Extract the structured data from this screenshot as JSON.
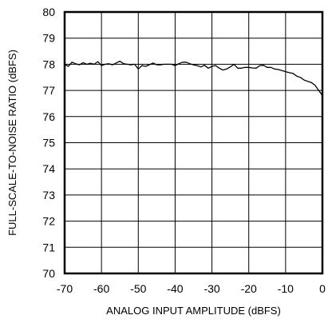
{
  "chart_data": {
    "type": "line",
    "title": "",
    "xlabel": "ANALOG INPUT AMPLITUDE (dBFS)",
    "ylabel": "FULL-SCALE-TO-NOISE RATIO (dBFS)",
    "xlim": [
      -70,
      0
    ],
    "ylim": [
      70,
      80
    ],
    "xticks": [
      -70,
      -60,
      -50,
      -40,
      -30,
      -20,
      -10,
      0
    ],
    "yticks": [
      70,
      71,
      72,
      73,
      74,
      75,
      76,
      77,
      78,
      79,
      80
    ],
    "xtick_labels": [
      "-70",
      "-60",
      "-50",
      "-40",
      "-30",
      "-20",
      "-10",
      "0"
    ],
    "ytick_labels": [
      "70",
      "71",
      "72",
      "73",
      "74",
      "75",
      "76",
      "77",
      "78",
      "79",
      "80"
    ],
    "grid": true,
    "series": [
      {
        "x": [
          -70,
          -69,
          -68,
          -67,
          -66,
          -65,
          -64,
          -63,
          -62,
          -61,
          -60,
          -59,
          -58,
          -57,
          -56,
          -55,
          -54,
          -53,
          -52,
          -51,
          -50,
          -49,
          -48,
          -47,
          -46,
          -45,
          -44,
          -43,
          -42,
          -41,
          -40,
          -39,
          -38,
          -37,
          -36,
          -35,
          -34,
          -33,
          -32,
          -31,
          -30,
          -29,
          -28,
          -27,
          -26,
          -25,
          -24,
          -23,
          -22,
          -21,
          -20,
          -19,
          -18,
          -17,
          -16,
          -15,
          -14,
          -13,
          -12,
          -11,
          -10,
          -9,
          -8,
          -7,
          -6,
          -5,
          -4,
          -3,
          -2,
          -1,
          0
        ],
        "y": [
          78.0,
          77.92,
          78.08,
          78.02,
          77.98,
          78.06,
          78.0,
          78.04,
          78.0,
          78.1,
          77.95,
          78.0,
          78.02,
          77.98,
          78.05,
          78.12,
          78.02,
          78.0,
          77.98,
          78.0,
          77.82,
          77.95,
          77.92,
          77.98,
          78.05,
          77.98,
          77.98,
          78.0,
          78.0,
          78.0,
          77.95,
          78.02,
          78.08,
          78.08,
          78.02,
          77.98,
          77.95,
          77.9,
          77.96,
          77.85,
          77.92,
          77.95,
          77.85,
          77.78,
          77.82,
          77.9,
          78.0,
          77.85,
          77.85,
          77.88,
          77.88,
          77.86,
          77.85,
          77.95,
          77.96,
          77.88,
          77.88,
          77.82,
          77.8,
          77.76,
          77.72,
          77.68,
          77.65,
          77.55,
          77.5,
          77.4,
          77.35,
          77.3,
          77.2,
          77.0,
          76.8
        ]
      }
    ]
  }
}
